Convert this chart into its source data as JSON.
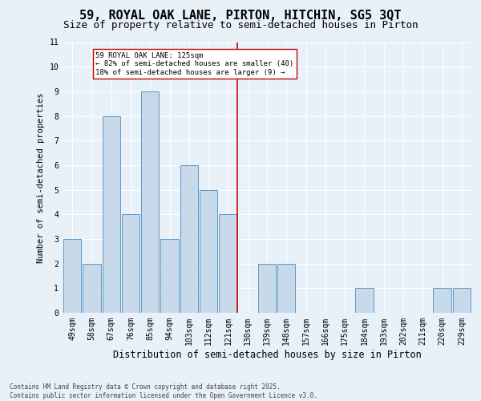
{
  "title_line1": "59, ROYAL OAK LANE, PIRTON, HITCHIN, SG5 3QT",
  "title_line2": "Size of property relative to semi-detached houses in Pirton",
  "xlabel": "Distribution of semi-detached houses by size in Pirton",
  "ylabel": "Number of semi-detached properties",
  "categories": [
    "49sqm",
    "58sqm",
    "67sqm",
    "76sqm",
    "85sqm",
    "94sqm",
    "103sqm",
    "112sqm",
    "121sqm",
    "130sqm",
    "139sqm",
    "148sqm",
    "157sqm",
    "166sqm",
    "175sqm",
    "184sqm",
    "193sqm",
    "202sqm",
    "211sqm",
    "220sqm",
    "229sqm"
  ],
  "values": [
    3,
    2,
    8,
    4,
    9,
    3,
    6,
    5,
    4,
    0,
    2,
    2,
    0,
    0,
    0,
    1,
    0,
    0,
    0,
    1,
    1
  ],
  "bar_color": "#c8daea",
  "bar_edge_color": "#5a9ac8",
  "vline_color": "#cc0000",
  "annotation_text": "59 ROYAL OAK LANE: 125sqm\n← 82% of semi-detached houses are smaller (40)\n18% of semi-detached houses are larger (9) →",
  "annotation_box_color": "#ffffff",
  "annotation_box_edge": "#cc0000",
  "ylim": [
    0,
    11
  ],
  "yticks": [
    0,
    1,
    2,
    3,
    4,
    5,
    6,
    7,
    8,
    9,
    10,
    11
  ],
  "footnote": "Contains HM Land Registry data © Crown copyright and database right 2025.\nContains public sector information licensed under the Open Government Licence v3.0.",
  "background_color": "#e8f0f8",
  "grid_color": "#ffffff",
  "title_fontsize": 11,
  "subtitle_fontsize": 9,
  "xlabel_fontsize": 8.5,
  "ylabel_fontsize": 7.5,
  "tick_fontsize": 7,
  "annot_fontsize": 6.5,
  "footnote_fontsize": 5.5
}
